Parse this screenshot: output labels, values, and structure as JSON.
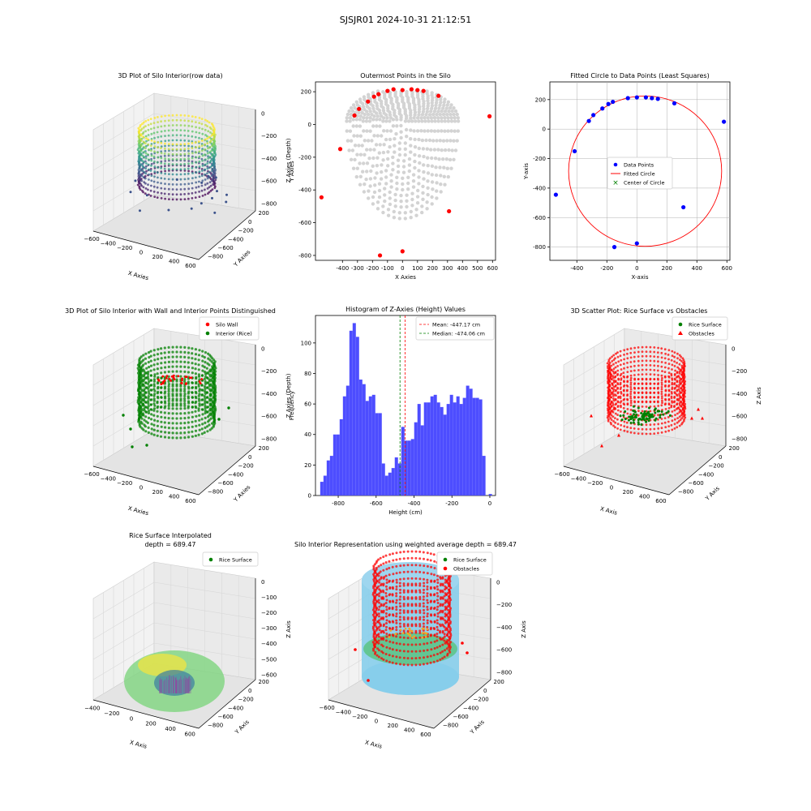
{
  "suptitle": "SJSJR01 2024-10-31 21:12:51",
  "colors": {
    "blue": "#0000ff",
    "red": "#ff0000",
    "green": "#008000",
    "grey": "#d3d3d3",
    "hist": "#4d4dff",
    "skyblue": "#87ceeb"
  },
  "chart_data": [
    {
      "id": "p1",
      "type": "scatter3d",
      "title": "3D Plot of Silo Interior(row data)",
      "xlabel": "X Axies",
      "ylabel": "Y Axies",
      "zlabel": "Z Axies (Depth)",
      "xticks": [
        "−600",
        "−400",
        "−200",
        "0",
        "200",
        "400",
        "600"
      ],
      "yticks": [
        "200",
        "0",
        "−200",
        "−400",
        "−600",
        "−800"
      ],
      "zticks": [
        "0",
        "−200",
        "−400",
        "−600",
        "−800"
      ],
      "colormap": "viridis"
    },
    {
      "id": "p2",
      "type": "scatter",
      "title": "Outermost Points in the Silo",
      "xlabel": "X Axies",
      "ylabel": "Y Axies",
      "xlim": [
        -580,
        620
      ],
      "ylim": [
        -830,
        260
      ],
      "xticks": [
        -400,
        -300,
        -200,
        -100,
        0,
        100,
        200,
        300,
        400,
        500,
        600
      ],
      "yticks": [
        -800,
        -600,
        -400,
        -200,
        0,
        200
      ],
      "outer_points": [
        [
          -540,
          -445
        ],
        [
          -415,
          -150
        ],
        [
          -320,
          55
        ],
        [
          -290,
          95
        ],
        [
          -230,
          140
        ],
        [
          -190,
          170
        ],
        [
          -160,
          185
        ],
        [
          -100,
          205
        ],
        [
          -60,
          215
        ],
        [
          0,
          210
        ],
        [
          60,
          215
        ],
        [
          100,
          210
        ],
        [
          140,
          205
        ],
        [
          240,
          175
        ],
        [
          310,
          -530
        ],
        [
          580,
          50
        ],
        [
          -150,
          -800
        ],
        [
          0,
          -775
        ]
      ]
    },
    {
      "id": "p3",
      "type": "scatter",
      "title": "Fitted Circle to Data Points (Least Squares)",
      "xlabel": "X-axis",
      "ylabel": "Y-axis",
      "xlim": [
        -580,
        620
      ],
      "ylim": [
        -890,
        320
      ],
      "xticks": [
        -400,
        -200,
        0,
        200,
        400,
        600
      ],
      "yticks": [
        -800,
        -600,
        -400,
        -200,
        0,
        200
      ],
      "legend": [
        "Data Points",
        "Fitted Circle",
        "Center of Circle"
      ],
      "circle": {
        "cx": 55,
        "cy": -285,
        "r": 510
      },
      "data_points": [
        [
          -540,
          -445
        ],
        [
          -415,
          -150
        ],
        [
          -320,
          55
        ],
        [
          -290,
          95
        ],
        [
          -230,
          140
        ],
        [
          -190,
          170
        ],
        [
          -160,
          185
        ],
        [
          -60,
          210
        ],
        [
          0,
          215
        ],
        [
          60,
          215
        ],
        [
          100,
          210
        ],
        [
          140,
          205
        ],
        [
          250,
          175
        ],
        [
          310,
          -530
        ],
        [
          580,
          50
        ],
        [
          -150,
          -800
        ],
        [
          0,
          -775
        ]
      ]
    },
    {
      "id": "p4",
      "type": "scatter3d",
      "title": "3D Plot of Silo Interior with Wall and Interior Points Distinguished",
      "xlabel": "X Axies",
      "ylabel": "Y Axies",
      "zlabel": "Z Axies (Depth)",
      "xticks": [
        "−600",
        "−400",
        "−200",
        "0",
        "200",
        "400",
        "600"
      ],
      "yticks": [
        "200",
        "0",
        "−200",
        "−400",
        "−600",
        "−800"
      ],
      "zticks": [
        "0",
        "−200",
        "−400",
        "−600",
        "−800"
      ],
      "legend": [
        "Silo Wall",
        "Interior (Rice)"
      ]
    },
    {
      "id": "p5",
      "type": "bar",
      "title": "Histogram of Z-Axies (Height) Values",
      "xlabel": "Height (cm)",
      "ylabel": "Frequency",
      "xlim": [
        -920,
        30
      ],
      "ylim": [
        0,
        118
      ],
      "xticks": [
        -800,
        -600,
        -400,
        -200,
        0
      ],
      "yticks": [
        0,
        20,
        40,
        60,
        80,
        100
      ],
      "bins_start": -895,
      "bin_width": 17.1,
      "values": [
        9,
        13,
        23,
        26,
        40,
        40,
        50,
        65,
        72,
        108,
        113,
        104,
        76,
        73,
        62,
        65,
        66,
        54,
        54,
        21,
        13,
        15,
        18,
        25,
        21,
        45,
        36,
        36,
        37,
        48,
        60,
        46,
        61,
        61,
        65,
        66,
        61,
        58,
        53,
        60,
        66,
        61,
        65,
        60,
        64,
        72,
        70,
        64,
        64,
        63,
        26,
        0,
        1
      ],
      "mean": -447.17,
      "median": -474.06,
      "legend": [
        "Mean: -447.17 cm",
        "Median: -474.06 cm"
      ]
    },
    {
      "id": "p6",
      "type": "scatter3d",
      "title": "3D Scatter Plot: Rice Surface vs Obstacles",
      "xlabel": "X Axis",
      "ylabel": "Y Axis",
      "zlabel": "Z Axis",
      "xticks": [
        "−600",
        "−400",
        "−200",
        "0",
        "200",
        "400",
        "600"
      ],
      "yticks": [
        "200",
        "0",
        "−200",
        "−400",
        "−600",
        "−800"
      ],
      "zticks": [
        "0",
        "−200",
        "−400",
        "−600",
        "−800"
      ],
      "legend": [
        "Rice Surface",
        "Obstacles"
      ]
    },
    {
      "id": "p7",
      "type": "surface3d",
      "title": "Rice Surface Interpolated",
      "subtitle": "depth = 689.47",
      "xlabel": "X Axis",
      "ylabel": "Y Axis",
      "zlabel": "Z Axis",
      "xticks": [
        "−400",
        "−200",
        "0",
        "200",
        "400",
        "600"
      ],
      "yticks": [
        "200",
        "0",
        "−200",
        "−400",
        "−600",
        "−800"
      ],
      "zticks": [
        "0",
        "−100",
        "−200",
        "−300",
        "−400",
        "−500",
        "−600"
      ],
      "legend": [
        "Rice Surface"
      ]
    },
    {
      "id": "p8",
      "type": "scatter3d",
      "title": "Silo Interior Representation using weighted average depth = 689.47",
      "xlabel": "X Axis",
      "ylabel": "Y Axis",
      "zlabel": "Z Axis",
      "xticks": [
        "−600",
        "−400",
        "−200",
        "0",
        "200",
        "400",
        "600"
      ],
      "yticks": [
        "200",
        "0",
        "−200",
        "−400",
        "−600",
        "−800"
      ],
      "zticks": [
        "0",
        "−200",
        "−400",
        "−600",
        "−800"
      ],
      "legend": [
        "Rice Surface",
        "Obstacles"
      ]
    }
  ]
}
